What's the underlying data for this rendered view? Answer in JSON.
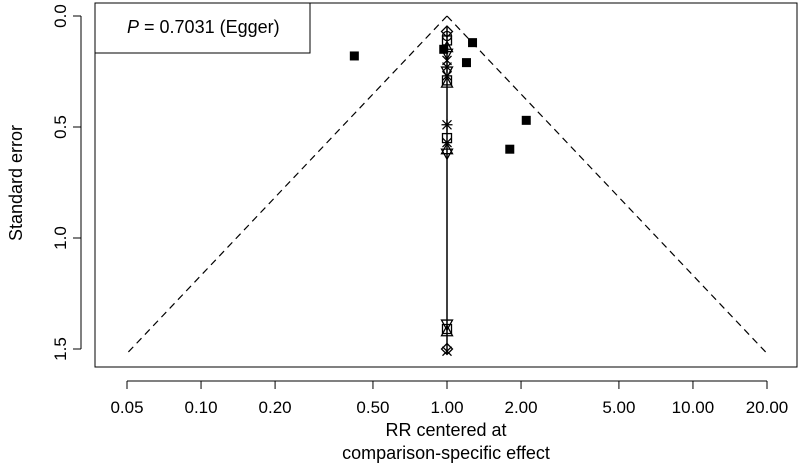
{
  "chart_data": {
    "type": "scatter",
    "title": "",
    "annotation": {
      "italic_label": "P",
      "text": " = 0.7031 (Egger)"
    },
    "xlabel_line1": "RR centered at",
    "xlabel_line2": "comparison-specific effect",
    "ylabel": "Standard error",
    "x_scale": "log",
    "y_reversed": true,
    "xlim": [
      0.05,
      20
    ],
    "ylim": [
      0.0,
      1.5
    ],
    "x_ticks": [
      {
        "value": 0.05,
        "label": "0.05"
      },
      {
        "value": 0.1,
        "label": "0.10"
      },
      {
        "value": 0.2,
        "label": "0.20"
      },
      {
        "value": 0.5,
        "label": "0.50"
      },
      {
        "value": 1.0,
        "label": "1.00"
      },
      {
        "value": 2.0,
        "label": "2.00"
      },
      {
        "value": 5.0,
        "label": "5.00"
      },
      {
        "value": 10.0,
        "label": "10.00"
      },
      {
        "value": 20.0,
        "label": "20.00"
      }
    ],
    "y_ticks": [
      {
        "value": 0.0,
        "label": "0.0"
      },
      {
        "value": 0.5,
        "label": "0.5"
      },
      {
        "value": 1.0,
        "label": "1.0"
      },
      {
        "value": 1.5,
        "label": "1.5"
      }
    ],
    "funnel": {
      "center": 1.0,
      "apex_se": 0.0,
      "base_se": 1.52,
      "low_x": 0.05,
      "high_x": 20,
      "style": "dashed"
    },
    "center_line": {
      "x": 1.0,
      "from_se": 0.05,
      "to_se": 1.52
    },
    "points": [
      {
        "x": 0.42,
        "se": 0.18,
        "marker": "square"
      },
      {
        "x": 1.27,
        "se": 0.12,
        "marker": "square"
      },
      {
        "x": 1.2,
        "se": 0.21,
        "marker": "square"
      },
      {
        "x": 2.1,
        "se": 0.47,
        "marker": "square"
      },
      {
        "x": 1.8,
        "se": 0.6,
        "marker": "square"
      },
      {
        "x": 0.97,
        "se": 0.15,
        "marker": "square"
      },
      {
        "x": 1.0,
        "se": 0.07,
        "marker": "diamond"
      },
      {
        "x": 1.0,
        "se": 0.09,
        "marker": "circle"
      },
      {
        "x": 1.0,
        "se": 0.11,
        "marker": "square-open"
      },
      {
        "x": 1.0,
        "se": 0.14,
        "marker": "triangle-up"
      },
      {
        "x": 1.0,
        "se": 0.17,
        "marker": "triangle-down"
      },
      {
        "x": 1.0,
        "se": 0.2,
        "marker": "x"
      },
      {
        "x": 1.0,
        "se": 0.23,
        "marker": "asterisk"
      },
      {
        "x": 1.0,
        "se": 0.25,
        "marker": "triangle-down"
      },
      {
        "x": 1.0,
        "se": 0.27,
        "marker": "x"
      },
      {
        "x": 1.0,
        "se": 0.29,
        "marker": "square-open"
      },
      {
        "x": 1.0,
        "se": 0.3,
        "marker": "triangle-up"
      },
      {
        "x": 1.0,
        "se": 0.49,
        "marker": "asterisk"
      },
      {
        "x": 1.0,
        "se": 0.55,
        "marker": "square-open"
      },
      {
        "x": 1.0,
        "se": 0.57,
        "marker": "x"
      },
      {
        "x": 1.0,
        "se": 0.6,
        "marker": "triangle-up"
      },
      {
        "x": 1.0,
        "se": 0.62,
        "marker": "triangle-down"
      },
      {
        "x": 1.0,
        "se": 1.39,
        "marker": "triangle-down"
      },
      {
        "x": 1.0,
        "se": 1.41,
        "marker": "square-open"
      },
      {
        "x": 1.0,
        "se": 1.42,
        "marker": "triangle-up"
      },
      {
        "x": 1.0,
        "se": 1.5,
        "marker": "diamond"
      },
      {
        "x": 1.0,
        "se": 1.51,
        "marker": "x"
      }
    ]
  }
}
